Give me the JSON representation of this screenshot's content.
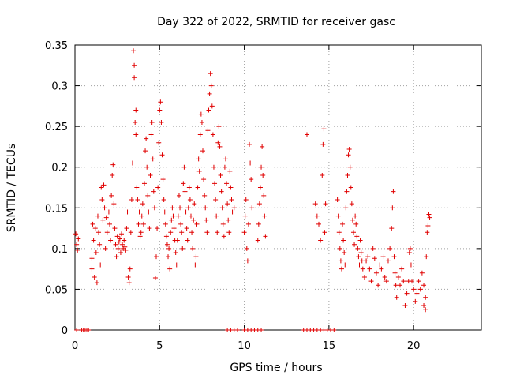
{
  "chart_data": {
    "type": "scatter",
    "title": "Day 322 of 2022, SRMTID for receiver gasc",
    "xlabel": "GPS time / hours",
    "ylabel": "SRMTID / TECUs",
    "xlim": [
      0,
      24
    ],
    "ylim": [
      0,
      0.35
    ],
    "x_ticks": [
      0,
      5,
      10,
      15,
      20
    ],
    "x_tick_labels": [
      "0",
      "5",
      "10",
      "15",
      "20"
    ],
    "y_ticks": [
      0,
      0.05,
      0.1,
      0.15,
      0.2,
      0.25,
      0.3,
      0.35
    ],
    "y_tick_labels": [
      "0",
      "0.05",
      "0.1",
      "0.15",
      "0.2",
      "0.25",
      "0.3",
      "0.35"
    ],
    "grid": true,
    "marker": "+",
    "series_color": "#e00000",
    "series": [
      {
        "name": "SRMTID",
        "points": [
          [
            0.05,
            0.118
          ],
          [
            0.1,
            0.105
          ],
          [
            0.15,
            0.098
          ],
          [
            0.2,
            0.112
          ],
          [
            0.1,
            0.0
          ],
          [
            0.4,
            0.0
          ],
          [
            0.5,
            0.0
          ],
          [
            0.6,
            0.0
          ],
          [
            0.7,
            0.0
          ],
          [
            0.8,
            0.0
          ],
          [
            1.0,
            0.088
          ],
          [
            1.0,
            0.075
          ],
          [
            1.05,
            0.13
          ],
          [
            1.1,
            0.11
          ],
          [
            1.15,
            0.065
          ],
          [
            1.2,
            0.125
          ],
          [
            1.25,
            0.095
          ],
          [
            1.3,
            0.058
          ],
          [
            1.35,
            0.14
          ],
          [
            1.4,
            0.12
          ],
          [
            1.45,
            0.105
          ],
          [
            1.5,
            0.08
          ],
          [
            1.55,
            0.175
          ],
          [
            1.6,
            0.16
          ],
          [
            1.65,
            0.135
          ],
          [
            1.7,
            0.178
          ],
          [
            1.75,
            0.15
          ],
          [
            1.8,
            0.1
          ],
          [
            1.85,
            0.138
          ],
          [
            1.9,
            0.12
          ],
          [
            2.0,
            0.145
          ],
          [
            2.05,
            0.13
          ],
          [
            2.1,
            0.11
          ],
          [
            2.15,
            0.165
          ],
          [
            2.2,
            0.19
          ],
          [
            2.25,
            0.203
          ],
          [
            2.3,
            0.155
          ],
          [
            2.35,
            0.125
          ],
          [
            2.4,
            0.105
          ],
          [
            2.45,
            0.09
          ],
          [
            2.5,
            0.115
          ],
          [
            2.55,
            0.1
          ],
          [
            2.6,
            0.108
          ],
          [
            2.65,
            0.112
          ],
          [
            2.7,
            0.095
          ],
          [
            2.75,
            0.118
          ],
          [
            2.8,
            0.105
          ],
          [
            2.85,
            0.1
          ],
          [
            2.9,
            0.11
          ],
          [
            2.95,
            0.102
          ],
          [
            3.0,
            0.098
          ],
          [
            3.05,
            0.125
          ],
          [
            3.1,
            0.145
          ],
          [
            3.15,
            0.065
          ],
          [
            3.2,
            0.058
          ],
          [
            3.25,
            0.075
          ],
          [
            3.3,
            0.12
          ],
          [
            3.35,
            0.16
          ],
          [
            3.4,
            0.205
          ],
          [
            3.45,
            0.343
          ],
          [
            3.5,
            0.325
          ],
          [
            3.5,
            0.31
          ],
          [
            3.55,
            0.255
          ],
          [
            3.6,
            0.27
          ],
          [
            3.6,
            0.24
          ],
          [
            3.65,
            0.175
          ],
          [
            3.7,
            0.16
          ],
          [
            3.75,
            0.13
          ],
          [
            3.8,
            0.145
          ],
          [
            3.85,
            0.115
          ],
          [
            3.9,
            0.12
          ],
          [
            3.95,
            0.14
          ],
          [
            4.0,
            0.155
          ],
          [
            4.05,
            0.13
          ],
          [
            4.1,
            0.18
          ],
          [
            4.15,
            0.22
          ],
          [
            4.2,
            0.235
          ],
          [
            4.25,
            0.2
          ],
          [
            4.3,
            0.165
          ],
          [
            4.35,
            0.145
          ],
          [
            4.4,
            0.125
          ],
          [
            4.45,
            0.19
          ],
          [
            4.5,
            0.24
          ],
          [
            4.55,
            0.255
          ],
          [
            4.6,
            0.21
          ],
          [
            4.65,
            0.17
          ],
          [
            4.7,
            0.15
          ],
          [
            4.75,
            0.064
          ],
          [
            4.8,
            0.09
          ],
          [
            4.85,
            0.125
          ],
          [
            4.9,
            0.175
          ],
          [
            4.95,
            0.23
          ],
          [
            5.0,
            0.27
          ],
          [
            5.05,
            0.28
          ],
          [
            5.1,
            0.255
          ],
          [
            5.15,
            0.215
          ],
          [
            5.2,
            0.185
          ],
          [
            5.25,
            0.16
          ],
          [
            5.3,
            0.145
          ],
          [
            5.35,
            0.13
          ],
          [
            5.4,
            0.115
          ],
          [
            5.45,
            0.105
          ],
          [
            5.5,
            0.09
          ],
          [
            5.55,
            0.1
          ],
          [
            5.6,
            0.075
          ],
          [
            5.65,
            0.12
          ],
          [
            5.7,
            0.135
          ],
          [
            5.75,
            0.15
          ],
          [
            5.8,
            0.14
          ],
          [
            5.85,
            0.125
          ],
          [
            5.9,
            0.11
          ],
          [
            5.95,
            0.095
          ],
          [
            6.0,
            0.08
          ],
          [
            6.05,
            0.11
          ],
          [
            6.1,
            0.14
          ],
          [
            6.15,
            0.165
          ],
          [
            6.2,
            0.15
          ],
          [
            6.25,
            0.13
          ],
          [
            6.3,
            0.12
          ],
          [
            6.35,
            0.1
          ],
          [
            6.4,
            0.18
          ],
          [
            6.45,
            0.2
          ],
          [
            6.5,
            0.17
          ],
          [
            6.55,
            0.145
          ],
          [
            6.6,
            0.125
          ],
          [
            6.65,
            0.11
          ],
          [
            6.7,
            0.15
          ],
          [
            6.75,
            0.175
          ],
          [
            6.8,
            0.16
          ],
          [
            6.85,
            0.14
          ],
          [
            6.9,
            0.12
          ],
          [
            6.95,
            0.1
          ],
          [
            7.0,
            0.135
          ],
          [
            7.05,
            0.155
          ],
          [
            7.1,
            0.08
          ],
          [
            7.15,
            0.09
          ],
          [
            7.2,
            0.13
          ],
          [
            7.25,
            0.175
          ],
          [
            7.3,
            0.21
          ],
          [
            7.35,
            0.195
          ],
          [
            7.4,
            0.24
          ],
          [
            7.45,
            0.265
          ],
          [
            7.5,
            0.255
          ],
          [
            7.55,
            0.22
          ],
          [
            7.6,
            0.185
          ],
          [
            7.65,
            0.165
          ],
          [
            7.7,
            0.15
          ],
          [
            7.75,
            0.135
          ],
          [
            7.8,
            0.12
          ],
          [
            7.85,
            0.245
          ],
          [
            7.9,
            0.27
          ],
          [
            7.95,
            0.29
          ],
          [
            8.0,
            0.315
          ],
          [
            8.05,
            0.3
          ],
          [
            8.1,
            0.275
          ],
          [
            8.15,
            0.24
          ],
          [
            8.2,
            0.2
          ],
          [
            8.25,
            0.18
          ],
          [
            8.3,
            0.16
          ],
          [
            8.35,
            0.14
          ],
          [
            8.4,
            0.12
          ],
          [
            8.45,
            0.23
          ],
          [
            8.5,
            0.25
          ],
          [
            8.55,
            0.225
          ],
          [
            8.6,
            0.19
          ],
          [
            8.65,
            0.17
          ],
          [
            8.7,
            0.15
          ],
          [
            8.75,
            0.13
          ],
          [
            8.8,
            0.115
          ],
          [
            8.85,
            0.2
          ],
          [
            8.9,
            0.21
          ],
          [
            8.95,
            0.18
          ],
          [
            9.0,
            0.155
          ],
          [
            9.05,
            0.135
          ],
          [
            9.1,
            0.12
          ],
          [
            9.15,
            0.195
          ],
          [
            9.2,
            0.175
          ],
          [
            9.25,
            0.16
          ],
          [
            9.3,
            0.145
          ],
          [
            9.4,
            0.15
          ],
          [
            9.0,
            0.0
          ],
          [
            9.2,
            0.0
          ],
          [
            9.4,
            0.0
          ],
          [
            9.6,
            0.0
          ],
          [
            10.0,
            0.0
          ],
          [
            10.2,
            0.0
          ],
          [
            10.4,
            0.0
          ],
          [
            10.6,
            0.0
          ],
          [
            10.8,
            0.0
          ],
          [
            11.0,
            0.0
          ],
          [
            10.0,
            0.12
          ],
          [
            10.05,
            0.14
          ],
          [
            10.1,
            0.16
          ],
          [
            10.15,
            0.1
          ],
          [
            10.2,
            0.085
          ],
          [
            10.25,
            0.13
          ],
          [
            10.3,
            0.228
          ],
          [
            10.35,
            0.205
          ],
          [
            10.4,
            0.185
          ],
          [
            10.45,
            0.15
          ],
          [
            10.8,
            0.11
          ],
          [
            10.85,
            0.13
          ],
          [
            10.9,
            0.155
          ],
          [
            10.95,
            0.175
          ],
          [
            11.0,
            0.2
          ],
          [
            11.05,
            0.225
          ],
          [
            11.1,
            0.19
          ],
          [
            11.15,
            0.165
          ],
          [
            11.2,
            0.14
          ],
          [
            11.25,
            0.115
          ],
          [
            13.5,
            0.0
          ],
          [
            13.7,
            0.0
          ],
          [
            13.9,
            0.0
          ],
          [
            14.1,
            0.0
          ],
          [
            14.3,
            0.0
          ],
          [
            14.5,
            0.0
          ],
          [
            14.7,
            0.0
          ],
          [
            14.9,
            0.0
          ],
          [
            15.1,
            0.0
          ],
          [
            15.3,
            0.0
          ],
          [
            13.7,
            0.24
          ],
          [
            14.2,
            0.155
          ],
          [
            14.3,
            0.14
          ],
          [
            14.4,
            0.13
          ],
          [
            14.5,
            0.11
          ],
          [
            14.6,
            0.19
          ],
          [
            14.65,
            0.228
          ],
          [
            14.7,
            0.247
          ],
          [
            14.75,
            0.12
          ],
          [
            14.8,
            0.155
          ],
          [
            15.5,
            0.16
          ],
          [
            15.55,
            0.14
          ],
          [
            15.6,
            0.12
          ],
          [
            15.65,
            0.1
          ],
          [
            15.7,
            0.085
          ],
          [
            15.75,
            0.075
          ],
          [
            15.8,
            0.13
          ],
          [
            15.85,
            0.11
          ],
          [
            15.9,
            0.095
          ],
          [
            15.95,
            0.08
          ],
          [
            16.0,
            0.15
          ],
          [
            16.05,
            0.17
          ],
          [
            16.1,
            0.19
          ],
          [
            16.15,
            0.215
          ],
          [
            16.2,
            0.222
          ],
          [
            16.25,
            0.2
          ],
          [
            16.3,
            0.175
          ],
          [
            16.35,
            0.155
          ],
          [
            16.4,
            0.135
          ],
          [
            16.45,
            0.12
          ],
          [
            16.5,
            0.105
          ],
          [
            16.55,
            0.14
          ],
          [
            16.6,
            0.13
          ],
          [
            16.65,
            0.115
          ],
          [
            16.7,
            0.1
          ],
          [
            16.75,
            0.09
          ],
          [
            16.8,
            0.08
          ],
          [
            16.85,
            0.11
          ],
          [
            16.9,
            0.095
          ],
          [
            16.95,
            0.085
          ],
          [
            17.0,
            0.075
          ],
          [
            17.1,
            0.065
          ],
          [
            17.2,
            0.085
          ],
          [
            17.3,
            0.09
          ],
          [
            17.4,
            0.075
          ],
          [
            17.5,
            0.06
          ],
          [
            17.6,
            0.1
          ],
          [
            17.7,
            0.088
          ],
          [
            17.8,
            0.07
          ],
          [
            17.9,
            0.055
          ],
          [
            18.0,
            0.08
          ],
          [
            18.1,
            0.075
          ],
          [
            18.2,
            0.09
          ],
          [
            18.3,
            0.065
          ],
          [
            18.4,
            0.06
          ],
          [
            18.5,
            0.085
          ],
          [
            18.6,
            0.1
          ],
          [
            18.7,
            0.125
          ],
          [
            18.75,
            0.15
          ],
          [
            18.8,
            0.17
          ],
          [
            18.85,
            0.09
          ],
          [
            18.9,
            0.07
          ],
          [
            18.95,
            0.055
          ],
          [
            19.0,
            0.04
          ],
          [
            19.1,
            0.065
          ],
          [
            19.2,
            0.055
          ],
          [
            19.3,
            0.075
          ],
          [
            19.4,
            0.06
          ],
          [
            19.5,
            0.03
          ],
          [
            19.6,
            0.045
          ],
          [
            19.7,
            0.06
          ],
          [
            19.75,
            0.095
          ],
          [
            19.8,
            0.1
          ],
          [
            19.85,
            0.08
          ],
          [
            19.9,
            0.06
          ],
          [
            20.0,
            0.05
          ],
          [
            20.1,
            0.035
          ],
          [
            20.2,
            0.045
          ],
          [
            20.3,
            0.06
          ],
          [
            20.4,
            0.05
          ],
          [
            20.5,
            0.07
          ],
          [
            20.6,
            0.055
          ],
          [
            20.7,
            0.04
          ],
          [
            20.75,
            0.09
          ],
          [
            20.8,
            0.12
          ],
          [
            20.85,
            0.128
          ],
          [
            20.9,
            0.142
          ],
          [
            20.95,
            0.138
          ],
          [
            20.6,
            0.03
          ],
          [
            20.7,
            0.025
          ]
        ]
      }
    ]
  }
}
